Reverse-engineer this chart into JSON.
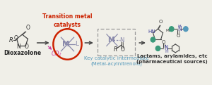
{
  "bg_color": "#f0efe8",
  "title_text": "Transition metal\ncatalysts",
  "title_color": "#cc2200",
  "label_dioxazolone": "Dioxazolone",
  "label_intermediate": "Key catalytic intermediate\n(Metal-acylnitrenoid)",
  "label_intermediate_color": "#5599bb",
  "label_products": "Lactams, arylamides, etc\n(pharmaceutical sources)",
  "label_products_color": "#333333",
  "co2_color": "#cc3399",
  "arrow_color": "#444444",
  "metal_circle_color": "#cc2200",
  "dashed_box_color": "#999999",
  "M_color": "#8888aa",
  "bond_color": "#333333",
  "teal_color": "#3a9a7a",
  "blue_color": "#5599bb",
  "figsize": [
    3.0,
    1.21
  ],
  "dpi": 100
}
